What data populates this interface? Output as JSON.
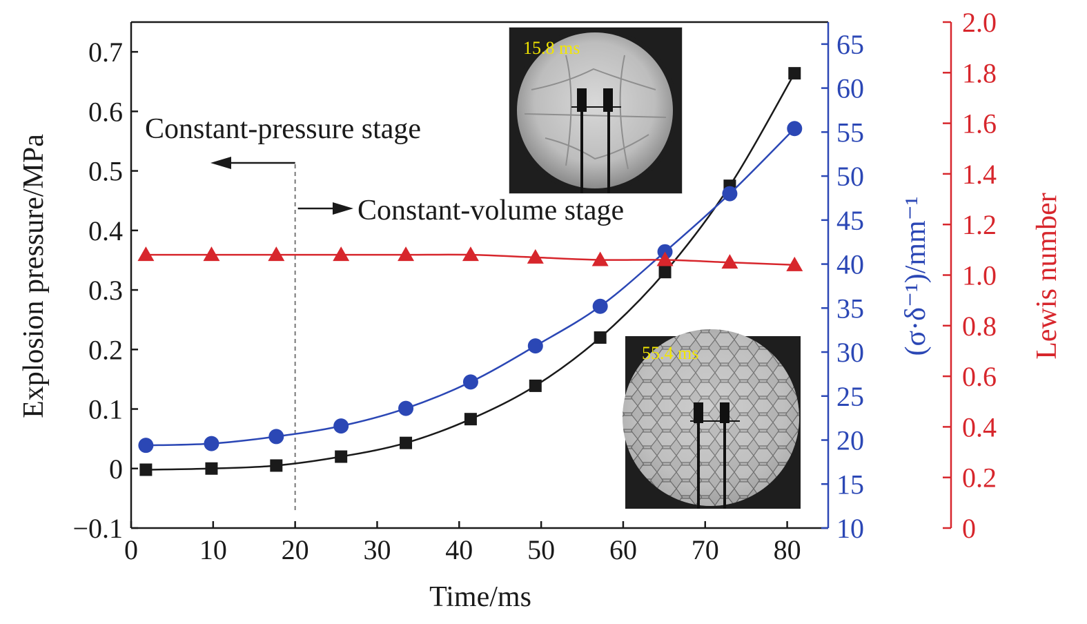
{
  "chart_data": {
    "type": "line",
    "xlabel": "Time/ms",
    "ylabel_left": "Explosion pressure/MPa",
    "ylabel_right1": "(σ·δ⁻¹)/mm⁻¹",
    "ylabel_right2": "Lewis number",
    "xlim": [
      0,
      85
    ],
    "ylim_left": [
      -0.1,
      0.75
    ],
    "ylim_right1": [
      10,
      67.5
    ],
    "ylim_right2": [
      0,
      2.0
    ],
    "x_ticks": [
      0,
      10,
      20,
      30,
      40,
      50,
      60,
      70,
      80
    ],
    "y_left_ticks": [
      -0.1,
      0,
      0.1,
      0.2,
      0.3,
      0.4,
      0.5,
      0.6,
      0.7
    ],
    "y_left_tick_labels": [
      "−0.1",
      "0",
      "0.1",
      "0.2",
      "0.3",
      "0.4",
      "0.5",
      "0.6",
      "0.7"
    ],
    "y_right1_ticks": [
      10,
      15,
      20,
      25,
      30,
      35,
      40,
      45,
      50,
      55,
      60,
      65
    ],
    "y_right2_ticks": [
      0,
      0.2,
      0.4,
      0.6,
      0.8,
      1.0,
      1.2,
      1.4,
      1.6,
      1.8,
      2.0
    ],
    "y_right2_tick_labels": [
      "0",
      "0.2",
      "0.4",
      "0.6",
      "0.8",
      "1.0",
      "1.2",
      "1.4",
      "1.6",
      "1.8",
      "2.0"
    ],
    "series": [
      {
        "axis": "left",
        "color": "#1a1a1a",
        "marker": "square",
        "x": [
          1.8,
          9.8,
          17.7,
          25.6,
          33.5,
          41.4,
          49.3,
          57.2,
          65.1,
          73.0,
          80.9
        ],
        "y": [
          -0.002,
          0.0,
          0.005,
          0.02,
          0.043,
          0.083,
          0.139,
          0.22,
          0.33,
          0.475,
          0.664
        ]
      },
      {
        "axis": "right1",
        "color": "#2b47b5",
        "marker": "circle",
        "x": [
          1.8,
          9.8,
          17.7,
          25.6,
          33.5,
          41.4,
          49.3,
          57.2,
          65.1,
          73.0,
          80.9
        ],
        "y": [
          19.4,
          19.6,
          20.4,
          21.6,
          23.6,
          26.6,
          30.7,
          35.2,
          41.4,
          48.0,
          55.4
        ]
      },
      {
        "axis": "right2",
        "color": "#d7262c",
        "marker": "triangle",
        "x": [
          1.8,
          9.8,
          17.7,
          25.6,
          33.5,
          41.4,
          49.3,
          57.2,
          65.1,
          73.0,
          80.9
        ],
        "y": [
          1.08,
          1.08,
          1.08,
          1.08,
          1.08,
          1.08,
          1.07,
          1.06,
          1.06,
          1.05,
          1.04
        ]
      }
    ],
    "stage_divider_x": 20,
    "annotations": {
      "constant_pressure": "Constant-pressure stage",
      "constant_volume": "Constant-volume stage"
    },
    "insets": [
      {
        "label": "15.8 ms"
      },
      {
        "label": "55.4 ms"
      }
    ],
    "colors": {
      "black": "#1a1a1a",
      "blue": "#2b47b5",
      "red": "#d7262c",
      "inset_label": "#f2e600"
    }
  }
}
